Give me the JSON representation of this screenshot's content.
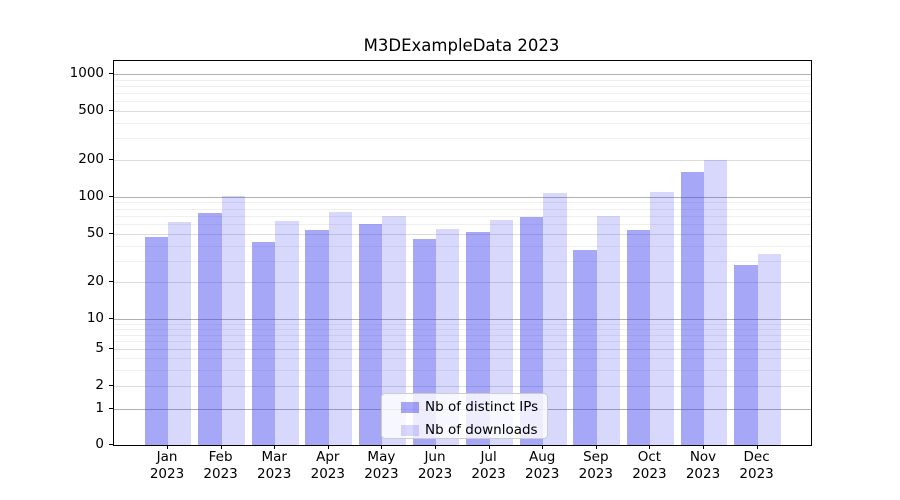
{
  "title": "M3DExampleData 2023",
  "colors": {
    "bar_distinct_ips": "rgba(60,60,240,0.45)",
    "bar_downloads": "rgba(60,60,240,0.20)",
    "grid_major": "#b0b0b0",
    "grid_mid": "#dcdcdc",
    "grid_minor": "#efefef",
    "axis": "#000000",
    "legend_border": "#cccccc"
  },
  "chart_data": {
    "type": "bar",
    "title": "M3DExampleData 2023",
    "categories": [
      "Jan 2023",
      "Feb 2023",
      "Mar 2023",
      "Apr 2023",
      "May 2023",
      "Jun 2023",
      "Jul 2023",
      "Aug 2023",
      "Sep 2023",
      "Oct 2023",
      "Nov 2023",
      "Dec 2023"
    ],
    "series": [
      {
        "name": "Nb of distinct IPs",
        "values": [
          47,
          74,
          43,
          54,
          60,
          45,
          52,
          68,
          37,
          54,
          160,
          28
        ]
      },
      {
        "name": "Nb of downloads",
        "values": [
          62,
          102,
          63,
          75,
          70,
          55,
          65,
          107,
          70,
          110,
          200,
          34
        ]
      }
    ],
    "xlabel": "",
    "ylabel": "",
    "yscale": "symlog",
    "ylim": [
      0,
      1400
    ],
    "yticks": [
      1000,
      500,
      200,
      100,
      50,
      20,
      10,
      5,
      2,
      1,
      0
    ],
    "ytick_labels": [
      "1000",
      "500",
      "200",
      "100",
      "50",
      "20",
      "10",
      "5",
      "2",
      "1",
      "0"
    ],
    "grid": true,
    "legend_position": "lower center inside"
  },
  "legend": {
    "items": [
      {
        "label": "Nb of distinct IPs",
        "swatch": "distinct-ips"
      },
      {
        "label": "Nb of downloads",
        "swatch": "downloads"
      }
    ]
  }
}
